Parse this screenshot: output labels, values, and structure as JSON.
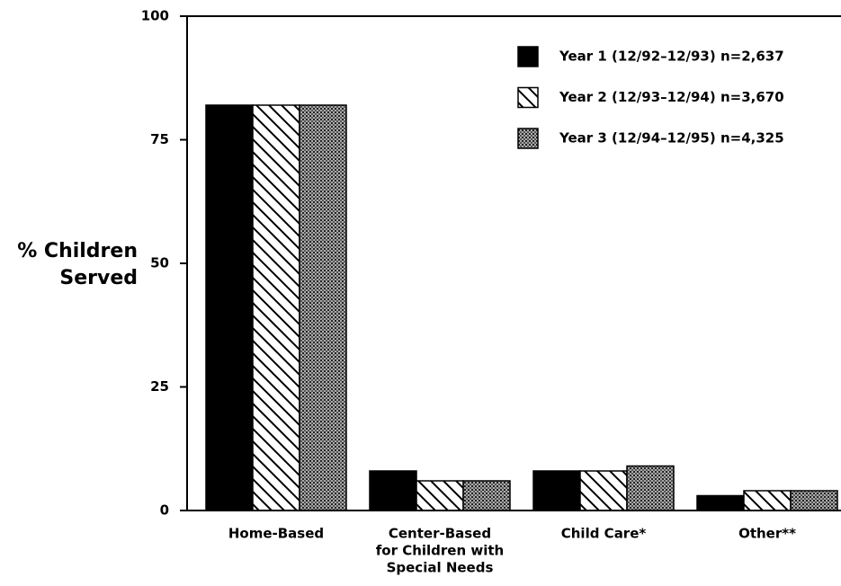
{
  "chart_data": {
    "type": "bar",
    "ylabel": [
      "% Children",
      "Served"
    ],
    "categories": [
      [
        "Home-Based"
      ],
      [
        "Center-Based",
        "for Children with",
        "Special Needs"
      ],
      [
        "Child Care*"
      ],
      [
        "Other**"
      ]
    ],
    "series": [
      {
        "name": "Year 1 (12/92–12/93) n=2,637",
        "color": "#000000",
        "pattern": "solid",
        "values": [
          82,
          8,
          8,
          3
        ]
      },
      {
        "name": "Year 2 (12/93–12/94) n=3,670",
        "color": "#000000",
        "pattern": "hatch",
        "values": [
          82,
          6,
          8,
          4
        ]
      },
      {
        "name": "Year 3 (12/94–12/95) n=4,325",
        "color": "#000000",
        "pattern": "dots",
        "values": [
          82,
          6,
          9,
          4
        ]
      }
    ],
    "ylim": [
      0,
      100
    ],
    "yticks": [
      0,
      25,
      50,
      75,
      100
    ],
    "legend": "upper right"
  }
}
